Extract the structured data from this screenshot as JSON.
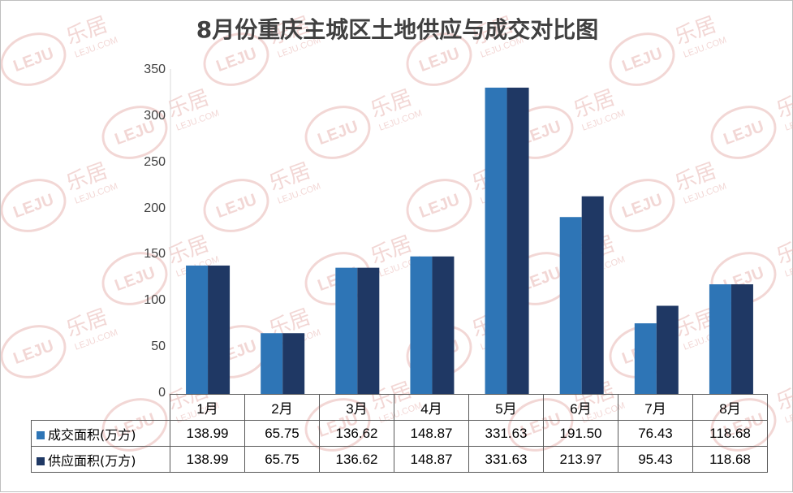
{
  "chart_data": {
    "type": "bar",
    "title": "8月份重庆主城区土地供应与成交对比图",
    "categories": [
      "1月",
      "2月",
      "3月",
      "4月",
      "5月",
      "6月",
      "7月",
      "8月"
    ],
    "series": [
      {
        "name": "成交面积(万方)",
        "color": "#2E75B6",
        "values": [
          138.99,
          65.75,
          136.62,
          148.87,
          331.63,
          191.5,
          76.43,
          118.68
        ]
      },
      {
        "name": "供应面积(万方)",
        "color": "#1F3864",
        "values": [
          138.99,
          65.75,
          136.62,
          148.87,
          331.63,
          213.97,
          95.43,
          118.68
        ]
      }
    ],
    "table_values": [
      [
        "138.99",
        "65.75",
        "136.62",
        "148.87",
        "331.63",
        "191.50",
        "76.43",
        "118.68"
      ],
      [
        "138.99",
        "65.75",
        "136.62",
        "148.87",
        "331.63",
        "213.97",
        "95.43",
        "118.68"
      ]
    ],
    "ylim": [
      0,
      350
    ],
    "yticks": [
      0,
      50,
      100,
      150,
      200,
      250,
      300,
      350
    ],
    "grid": false,
    "legend": "data-table"
  },
  "watermark": {
    "logo_text": "LEJU",
    "brand_text": "乐居",
    "site_text": "LEJU.COM",
    "color": "#e9b7b4"
  }
}
